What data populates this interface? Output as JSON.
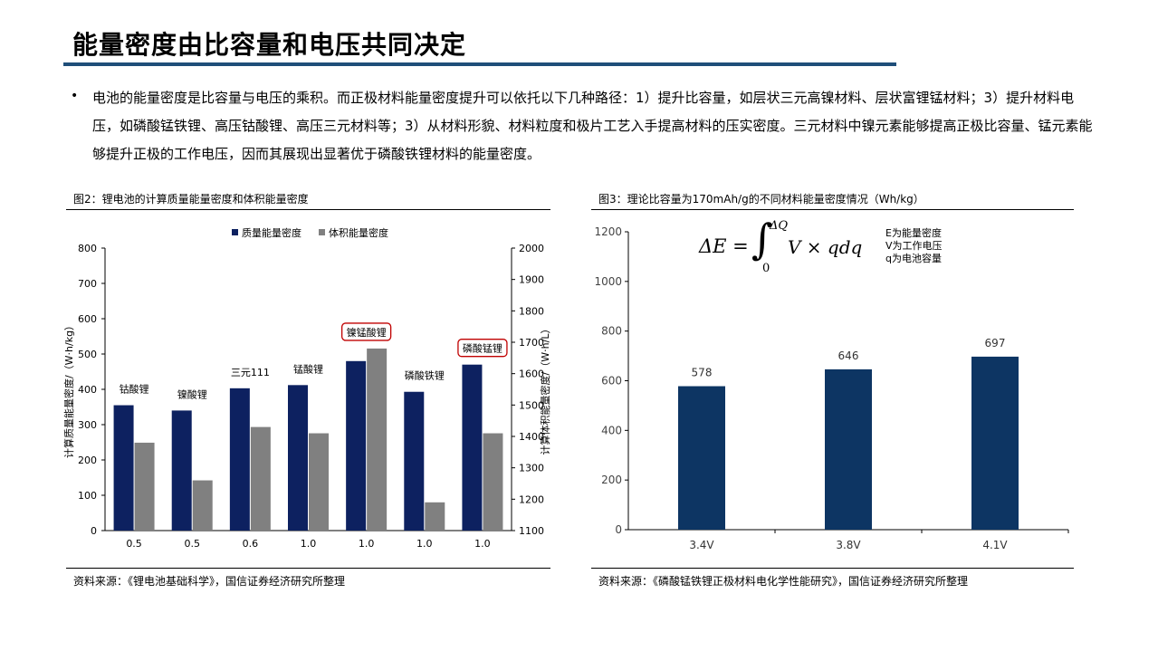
{
  "page": {
    "title": "能量密度由比容量和电压共同决定",
    "bullet": "电池的能量密度是比容量与电压的乘积。而正极材料能量密度提升可以依托以下几种路径：1）提升比容量，如层状三元高镍材料、层状富锂锰材料；3）提升材料电压，如磷酸锰铁锂、高压钴酸锂、高压三元材料等；3）从材料形貌、材料粒度和极片工艺入手提高材料的压实密度。三元材料中镍元素能够提高正极比容量、锰元素能够提升正极的工作电压，因而其展现出显著优于磷酸铁锂材料的能量密度。"
  },
  "left_panel": {
    "caption": "图2：锂电池的计算质量能量密度和体积能量密度",
    "source": "资料来源：《锂电池基础科学》，国信证券经济研究所整理"
  },
  "right_panel": {
    "caption": "图3：理论比容量为170mAh/g的不同材料能量密度情况（Wh/kg）",
    "source": "资料来源：《磷酸锰铁锂正极材料电化学性能研究》，国信证券经济研究所整理",
    "formula": {
      "lhs": "ΔE = ",
      "upper": "ΔQ",
      "lower": "0",
      "integrand": "V × qdq"
    },
    "notes": [
      "E为能量密度",
      "V为工作电压",
      "q为电池容量"
    ]
  },
  "chart_data": [
    {
      "type": "bar",
      "categories": [
        "0.5",
        "0.5",
        "0.6",
        "1.0",
        "1.0",
        "1.0",
        "1.0"
      ],
      "material_labels": [
        "钴酸锂",
        "镍酸锂",
        "三元111",
        "锰酸锂",
        "镍锰酸锂",
        "磷酸铁锂",
        "磷酸锰锂"
      ],
      "highlighted": [
        false,
        false,
        false,
        false,
        true,
        false,
        true
      ],
      "series": [
        {
          "name": "质量能量密度",
          "axis": "left",
          "color": "#0d2160",
          "values": [
            355,
            340,
            403,
            412,
            480,
            393,
            470
          ]
        },
        {
          "name": "体积能量密度",
          "axis": "right",
          "color": "#808080",
          "values": [
            1380,
            1260,
            1430,
            1410,
            1680,
            1190,
            1410
          ]
        }
      ],
      "ylabel": "计算质量能量密度/（W·h/kg）",
      "ylabel_right": "计算体积能量密度/（W·h/L）",
      "ylim": [
        0,
        800
      ],
      "yticks": [
        0,
        100,
        200,
        300,
        400,
        500,
        600,
        700,
        800
      ],
      "ylim_right": [
        1100,
        2000
      ],
      "yticks_right": [
        1100,
        1200,
        1300,
        1400,
        1500,
        1600,
        1700,
        1800,
        1900,
        2000
      ],
      "legend": "top-center",
      "grid": false,
      "highlight_color": "#c00000"
    },
    {
      "type": "bar",
      "categories": [
        "3.4V",
        "3.8V",
        "4.1V"
      ],
      "values": [
        578,
        646,
        697
      ],
      "value_labels": [
        "578",
        "646",
        "697"
      ],
      "color": "#0d3563",
      "ylim": [
        0,
        1200
      ],
      "yticks": [
        0,
        200,
        400,
        600,
        800,
        1000,
        1200
      ],
      "grid": false
    }
  ]
}
